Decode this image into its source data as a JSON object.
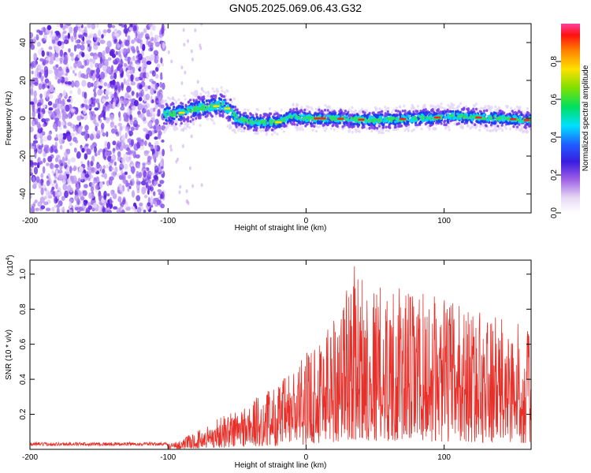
{
  "title": "GN05.2025.069.06.43.G32",
  "chart_data": [
    {
      "type": "heatmap",
      "xlabel": "Height of straight line (km)",
      "ylabel": "Frequency (Hz)",
      "xlim": [
        -200,
        163
      ],
      "ylim": [
        -50,
        50
      ],
      "xticks": [
        -200,
        -100,
        0,
        100
      ],
      "yticks": [
        -40,
        -20,
        0,
        20,
        40
      ],
      "colorbar": {
        "label": "Normalized spectral amplitude",
        "range": [
          0,
          1
        ],
        "ticks": [
          "0.0",
          "0.2",
          "0.4",
          "0.6",
          "0.8"
        ]
      },
      "ridge": [
        {
          "x": -100,
          "y": 2
        },
        {
          "x": -90,
          "y": 3
        },
        {
          "x": -80,
          "y": 5
        },
        {
          "x": -70,
          "y": 6
        },
        {
          "x": -60,
          "y": 7
        },
        {
          "x": -55,
          "y": 4
        },
        {
          "x": -50,
          "y": 0
        },
        {
          "x": -40,
          "y": -2
        },
        {
          "x": -20,
          "y": -2
        },
        {
          "x": -10,
          "y": 1
        },
        {
          "x": 0,
          "y": 0
        },
        {
          "x": 20,
          "y": 0
        },
        {
          "x": 50,
          "y": -1
        },
        {
          "x": 80,
          "y": 0
        },
        {
          "x": 110,
          "y": 1
        },
        {
          "x": 140,
          "y": 0
        },
        {
          "x": 163,
          "y": -1
        }
      ]
    },
    {
      "type": "line",
      "xlabel": "Height of straight line (km)",
      "ylabel": "SNR (10 * v/v)",
      "yscale_label": "(x10",
      "yscale_exp": "4",
      "yscale_close": ")",
      "xlim": [
        -200,
        163
      ],
      "ylim": [
        0,
        1.08
      ],
      "xticks": [
        -200,
        -100,
        0,
        100
      ],
      "yticks": [
        "0.2",
        "0.4",
        "0.6",
        "0.8",
        "1.0"
      ],
      "color": "#e8302a",
      "envelope": [
        {
          "x": -200,
          "y": 0.03
        },
        {
          "x": -100,
          "y": 0.03
        },
        {
          "x": -90,
          "y": 0.06
        },
        {
          "x": -80,
          "y": 0.1
        },
        {
          "x": -60,
          "y": 0.2
        },
        {
          "x": -40,
          "y": 0.28
        },
        {
          "x": -20,
          "y": 0.38
        },
        {
          "x": 0,
          "y": 0.55
        },
        {
          "x": 10,
          "y": 0.7
        },
        {
          "x": 25,
          "y": 0.85
        },
        {
          "x": 33,
          "y": 1.07
        },
        {
          "x": 50,
          "y": 0.95
        },
        {
          "x": 80,
          "y": 0.9
        },
        {
          "x": 110,
          "y": 0.85
        },
        {
          "x": 140,
          "y": 0.75
        },
        {
          "x": 163,
          "y": 0.7
        }
      ]
    }
  ]
}
